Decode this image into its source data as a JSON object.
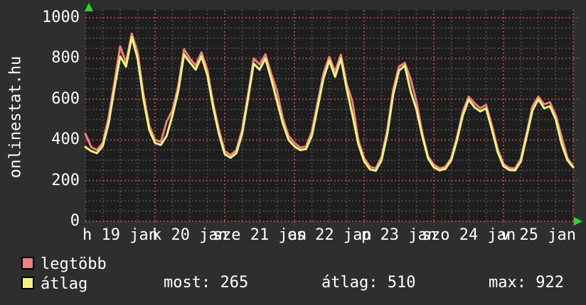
{
  "site": {
    "vertical_label": "onlinestat.hu"
  },
  "legend": [
    {
      "label": "legtöbb",
      "color": "#ee8080"
    },
    {
      "label": "átlag",
      "color": "#f2f27e"
    }
  ],
  "stats": {
    "most": "most: 265",
    "atlag": "átlag: 510",
    "max": "max: 922"
  },
  "chart_data": {
    "type": "line",
    "title": "",
    "xlabel": "",
    "ylabel": "",
    "ylim": [
      0,
      1000
    ],
    "y_ticks": [
      0,
      200,
      400,
      600,
      800,
      1000
    ],
    "y_minor_step": 50,
    "x_total_hours": 168,
    "x_step_hours": 2,
    "x_minor_step_hours": 6,
    "x_major_step_hours": 24,
    "x_tick_labels": [
      "h 19 jan",
      "k 20 jan",
      "sze 21 jan",
      "cs 22 jan",
      "p 23 jan",
      "szo 24 jan",
      "v 25 jan"
    ],
    "grid": {
      "on": true,
      "minor_color": "#474747",
      "major_color": "#a04343",
      "plot_bg": "#1e1e1e",
      "outer_bg": "#2e2e2e",
      "axis_arrow_color": "#2ed52e"
    },
    "legend_position": "bottom-left",
    "series": [
      {
        "name": "legtöbb",
        "color": "#ee8080",
        "values": [
          430,
          365,
          350,
          385,
          510,
          680,
          860,
          780,
          922,
          830,
          625,
          470,
          400,
          390,
          490,
          545,
          665,
          845,
          800,
          765,
          830,
          745,
          580,
          450,
          345,
          325,
          350,
          450,
          620,
          800,
          770,
          820,
          725,
          640,
          505,
          420,
          385,
          362,
          368,
          440,
          585,
          725,
          808,
          735,
          818,
          675,
          585,
          400,
          310,
          268,
          260,
          315,
          450,
          645,
          760,
          778,
          700,
          590,
          435,
          320,
          278,
          260,
          268,
          310,
          415,
          540,
          612,
          580,
          555,
          572,
          470,
          355,
          282,
          262,
          260,
          308,
          435,
          565,
          612,
          575,
          585,
          520,
          415,
          312,
          268
        ]
      },
      {
        "name": "átlag",
        "color": "#f2f27e",
        "values": [
          365,
          345,
          335,
          370,
          480,
          650,
          810,
          760,
          905,
          800,
          600,
          450,
          385,
          375,
          420,
          520,
          640,
          820,
          780,
          745,
          810,
          720,
          560,
          430,
          330,
          312,
          335,
          430,
          600,
          775,
          745,
          800,
          700,
          590,
          480,
          400,
          368,
          350,
          355,
          420,
          560,
          700,
          790,
          710,
          800,
          650,
          520,
          380,
          295,
          255,
          248,
          300,
          430,
          620,
          740,
          765,
          640,
          550,
          420,
          310,
          265,
          250,
          258,
          300,
          400,
          520,
          598,
          560,
          540,
          555,
          450,
          340,
          270,
          252,
          250,
          295,
          420,
          545,
          600,
          555,
          565,
          500,
          380,
          300,
          265
        ]
      }
    ],
    "summary": {
      "most": 265,
      "atlag": 510,
      "max": 922
    }
  }
}
